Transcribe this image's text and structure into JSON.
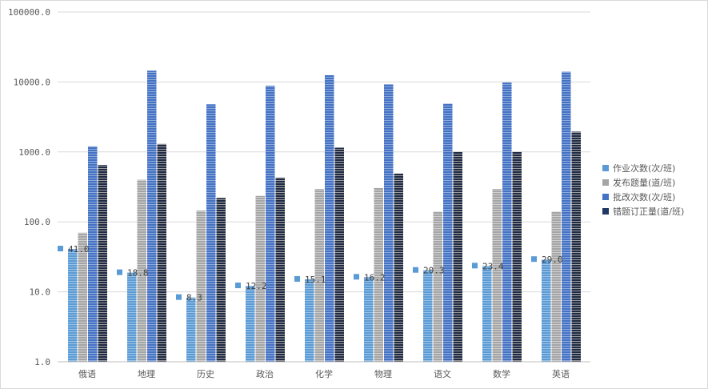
{
  "chart_data": {
    "type": "bar",
    "scale": "log",
    "ylim": [
      1,
      100000
    ],
    "y_ticks": [
      "1.0",
      "10.0",
      "100.0",
      "1000.0",
      "10000.0",
      "100000.0"
    ],
    "categories": [
      "俄语",
      "地理",
      "历史",
      "政治",
      "化学",
      "物理",
      "语文",
      "数学",
      "英语"
    ],
    "series": [
      {
        "name": "作业次数(次/班)",
        "color": "#5b9bd5",
        "values": [
          41.0,
          18.8,
          8.3,
          12.2,
          15.1,
          16.2,
          20.3,
          23.4,
          29.0
        ],
        "labels": [
          "41.0",
          "18.8",
          "8.3",
          "12.2",
          "15.1",
          "16.2",
          "20.3",
          "23.4",
          "29.0"
        ]
      },
      {
        "name": "发布题量(道/班)",
        "color": "#a5a5a5",
        "values": [
          70,
          400,
          145,
          235,
          295,
          305,
          140,
          295,
          140
        ]
      },
      {
        "name": "批改次数(次/班)",
        "color": "#4472c4",
        "values": [
          1200,
          14500,
          4800,
          8800,
          12500,
          9300,
          4900,
          9800,
          14000
        ]
      },
      {
        "name": "错题订正量(道/班)",
        "color": "#1f3864",
        "values": [
          650,
          1300,
          220,
          430,
          1150,
          490,
          1000,
          1000,
          1950
        ]
      }
    ],
    "grid": true,
    "legend": "right"
  }
}
